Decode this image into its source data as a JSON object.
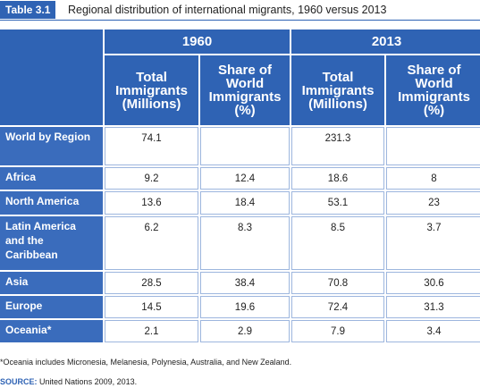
{
  "header": {
    "badge": "Table 3.1",
    "title": "Regional distribution of international migrants, 1960 versus 2013"
  },
  "table": {
    "years": [
      "1960",
      "2013"
    ],
    "columns": [
      "Total Immigrants (Millions)",
      "Share of World Immigrants (%)",
      "Total Immigrants (Millions)",
      "Share of World Immigrants (%)"
    ],
    "rows": [
      {
        "label": "World by Region",
        "values": [
          74.1,
          null,
          231.3,
          null
        ]
      },
      {
        "label": "Africa",
        "values": [
          9.2,
          12.4,
          18.6,
          8
        ]
      },
      {
        "label": "North America",
        "values": [
          13.6,
          18.4,
          53.1,
          23
        ]
      },
      {
        "label": "Latin America and the Caribbean",
        "values": [
          6.2,
          8.3,
          8.5,
          3.7
        ]
      },
      {
        "label": "Asia",
        "values": [
          28.5,
          38.4,
          70.8,
          30.6
        ]
      },
      {
        "label": "Europe",
        "values": [
          14.5,
          19.6,
          72.4,
          31.3
        ]
      },
      {
        "label": "Oceania*",
        "values": [
          2.1,
          2.9,
          7.9,
          3.4
        ]
      }
    ]
  },
  "footnote": "*Oceania includes Micronesia, Melanesia, Polynesia, Australia, and New Zealand.",
  "source_label": "SOURCE:",
  "source": "United Nations 2009, 2013."
}
